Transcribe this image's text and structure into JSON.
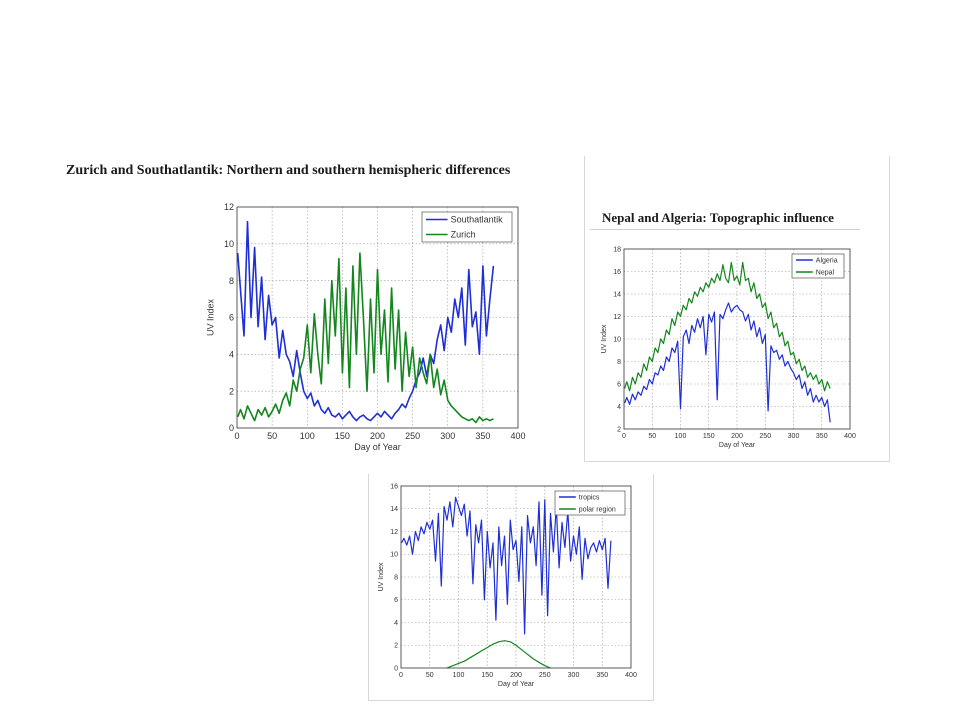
{
  "captions": {
    "zurich": "Zurich and Southatlantik: Northern and southern hemispheric differences",
    "nepal": "Nepal and Algeria: Topographic influence"
  },
  "chart_data": [
    {
      "type": "line",
      "xlabel": "Day of Year",
      "ylabel": "UV Index",
      "xlim": [
        0,
        400
      ],
      "ylim": [
        0,
        12
      ],
      "xticks": [
        0,
        50,
        100,
        150,
        200,
        250,
        300,
        350,
        400
      ],
      "yticks": [
        0,
        2,
        4,
        6,
        8,
        10,
        12
      ],
      "grid": true,
      "legend_position": "top-right",
      "series": [
        {
          "name": "Southatlantik",
          "color": "#1f2fd6",
          "x": [
            1,
            5,
            10,
            15,
            20,
            25,
            30,
            35,
            40,
            45,
            50,
            55,
            60,
            65,
            70,
            75,
            80,
            85,
            90,
            95,
            100,
            105,
            110,
            115,
            120,
            125,
            130,
            135,
            140,
            145,
            150,
            155,
            160,
            165,
            170,
            175,
            180,
            185,
            190,
            195,
            200,
            205,
            210,
            215,
            220,
            225,
            230,
            235,
            240,
            245,
            250,
            255,
            260,
            265,
            270,
            275,
            280,
            285,
            290,
            295,
            300,
            305,
            310,
            315,
            320,
            325,
            330,
            335,
            340,
            345,
            350,
            355,
            360,
            365
          ],
          "y": [
            9.5,
            7.5,
            5.0,
            11.2,
            6.0,
            9.8,
            5.5,
            8.2,
            4.8,
            7.2,
            5.6,
            6.0,
            3.8,
            5.3,
            4.0,
            3.6,
            2.8,
            4.2,
            3.0,
            2.0,
            1.6,
            1.9,
            1.2,
            1.5,
            1.0,
            0.8,
            1.1,
            0.7,
            0.6,
            0.8,
            0.5,
            0.7,
            0.9,
            0.6,
            0.4,
            0.6,
            0.7,
            0.5,
            0.4,
            0.6,
            0.8,
            0.6,
            0.9,
            0.7,
            0.5,
            0.8,
            1.0,
            1.3,
            1.1,
            1.6,
            2.0,
            2.6,
            3.0,
            3.8,
            2.8,
            4.0,
            3.5,
            4.8,
            5.6,
            4.2,
            6.0,
            5.2,
            7.0,
            6.0,
            7.6,
            4.5,
            8.6,
            5.5,
            6.3,
            4.0,
            8.8,
            5.0,
            7.0,
            8.8
          ]
        },
        {
          "name": "Zurich",
          "color": "#14861e",
          "x": [
            1,
            5,
            10,
            15,
            20,
            25,
            30,
            35,
            40,
            45,
            50,
            55,
            60,
            65,
            70,
            75,
            80,
            85,
            90,
            95,
            100,
            105,
            110,
            115,
            120,
            125,
            130,
            135,
            140,
            145,
            150,
            155,
            160,
            165,
            170,
            175,
            180,
            185,
            190,
            195,
            200,
            205,
            210,
            215,
            220,
            225,
            230,
            235,
            240,
            245,
            250,
            255,
            260,
            265,
            270,
            275,
            280,
            285,
            290,
            295,
            300,
            305,
            310,
            315,
            320,
            325,
            330,
            335,
            340,
            345,
            350,
            355,
            360,
            365
          ],
          "y": [
            0.6,
            1.0,
            0.5,
            1.2,
            0.8,
            0.4,
            1.0,
            0.7,
            1.1,
            0.6,
            0.9,
            1.3,
            0.8,
            1.5,
            1.9,
            1.2,
            2.6,
            2.0,
            3.2,
            3.8,
            5.6,
            3.0,
            6.2,
            4.0,
            2.4,
            7.0,
            3.5,
            8.0,
            5.0,
            9.2,
            3.0,
            7.6,
            2.2,
            8.8,
            4.0,
            9.5,
            6.0,
            2.0,
            7.0,
            3.0,
            8.6,
            4.0,
            6.4,
            2.5,
            7.6,
            3.2,
            6.4,
            2.0,
            5.2,
            2.8,
            4.4,
            2.2,
            3.8,
            3.0,
            2.4,
            4.0,
            2.2,
            3.2,
            1.8,
            2.6,
            1.5,
            1.2,
            1.0,
            0.8,
            0.6,
            0.5,
            0.4,
            0.5,
            0.3,
            0.6,
            0.4,
            0.5,
            0.4,
            0.5
          ]
        }
      ]
    },
    {
      "type": "line",
      "xlabel": "Day of Year",
      "ylabel": "UV Index",
      "xlim": [
        0,
        400
      ],
      "ylim": [
        2,
        18
      ],
      "xticks": [
        0,
        50,
        100,
        150,
        200,
        250,
        300,
        350,
        400
      ],
      "yticks": [
        2,
        4,
        6,
        8,
        10,
        12,
        14,
        16,
        18
      ],
      "grid": true,
      "legend_position": "top-right",
      "series": [
        {
          "name": "Algeria",
          "color": "#1f2fd6",
          "x": [
            1,
            5,
            10,
            15,
            20,
            25,
            30,
            35,
            40,
            45,
            50,
            55,
            60,
            65,
            70,
            75,
            80,
            85,
            90,
            95,
            100,
            105,
            110,
            115,
            120,
            125,
            130,
            135,
            140,
            145,
            150,
            155,
            160,
            165,
            170,
            175,
            180,
            185,
            190,
            195,
            200,
            205,
            210,
            215,
            220,
            225,
            230,
            235,
            240,
            245,
            250,
            255,
            260,
            265,
            270,
            275,
            280,
            285,
            290,
            295,
            300,
            305,
            310,
            315,
            320,
            325,
            330,
            335,
            340,
            345,
            350,
            355,
            360,
            365
          ],
          "y": [
            4.3,
            4.8,
            4.2,
            5.1,
            4.6,
            5.3,
            5.0,
            5.8,
            5.5,
            6.4,
            6.0,
            7.0,
            6.8,
            7.6,
            7.2,
            8.4,
            8.0,
            9.2,
            8.8,
            9.8,
            3.8,
            10.2,
            10.8,
            9.6,
            11.2,
            10.6,
            11.8,
            11.0,
            12.0,
            8.6,
            12.2,
            11.5,
            12.4,
            4.6,
            12.2,
            11.8,
            12.6,
            13.2,
            12.4,
            12.8,
            13.0,
            12.6,
            12.4,
            11.6,
            12.2,
            10.8,
            11.6,
            10.2,
            11.0,
            9.6,
            10.4,
            3.6,
            9.4,
            8.8,
            9.0,
            8.2,
            8.6,
            7.6,
            8.0,
            7.4,
            7.0,
            6.4,
            6.8,
            5.6,
            6.2,
            5.0,
            5.6,
            4.4,
            5.0,
            4.4,
            4.8,
            4.0,
            4.6,
            2.6
          ]
        },
        {
          "name": "Nepal",
          "color": "#14861e",
          "x": [
            1,
            5,
            10,
            15,
            20,
            25,
            30,
            35,
            40,
            45,
            50,
            55,
            60,
            65,
            70,
            75,
            80,
            85,
            90,
            95,
            100,
            105,
            110,
            115,
            120,
            125,
            130,
            135,
            140,
            145,
            150,
            155,
            160,
            165,
            170,
            175,
            180,
            185,
            190,
            195,
            200,
            205,
            210,
            215,
            220,
            225,
            230,
            235,
            240,
            245,
            250,
            255,
            260,
            265,
            270,
            275,
            280,
            285,
            290,
            295,
            300,
            305,
            310,
            315,
            320,
            325,
            330,
            335,
            340,
            345,
            350,
            355,
            360,
            365
          ],
          "y": [
            5.6,
            6.2,
            5.4,
            6.6,
            6.0,
            7.0,
            6.6,
            7.8,
            7.2,
            8.4,
            8.0,
            9.2,
            8.8,
            10.0,
            9.6,
            10.8,
            10.4,
            11.8,
            11.2,
            12.4,
            12.0,
            13.0,
            12.6,
            13.6,
            13.2,
            14.2,
            13.8,
            14.6,
            14.2,
            15.0,
            14.6,
            15.4,
            15.0,
            15.8,
            15.2,
            16.6,
            15.4,
            15.0,
            16.8,
            15.2,
            15.6,
            14.8,
            16.8,
            15.2,
            15.4,
            14.2,
            15.0,
            13.6,
            14.0,
            12.8,
            13.2,
            11.8,
            12.4,
            11.0,
            11.4,
            10.2,
            10.6,
            9.4,
            9.8,
            8.6,
            8.8,
            7.8,
            8.2,
            7.2,
            7.6,
            6.6,
            7.0,
            6.4,
            6.8,
            6.0,
            6.4,
            5.4,
            6.2,
            5.6
          ]
        }
      ]
    },
    {
      "type": "line",
      "xlabel": "Day of Year",
      "ylabel": "UV Index",
      "xlim": [
        0,
        400
      ],
      "ylim": [
        0,
        16
      ],
      "xticks": [
        0,
        50,
        100,
        150,
        200,
        250,
        300,
        350,
        400
      ],
      "yticks": [
        0,
        2,
        4,
        6,
        8,
        10,
        12,
        14,
        16
      ],
      "grid": true,
      "legend_position": "top-right",
      "series": [
        {
          "name": "tropics",
          "color": "#1f2fd6",
          "x": [
            1,
            5,
            10,
            15,
            20,
            25,
            30,
            35,
            40,
            45,
            50,
            55,
            60,
            65,
            70,
            75,
            80,
            85,
            90,
            95,
            100,
            105,
            110,
            115,
            120,
            125,
            130,
            135,
            140,
            145,
            150,
            155,
            160,
            165,
            170,
            175,
            180,
            185,
            190,
            195,
            200,
            205,
            210,
            215,
            220,
            225,
            230,
            235,
            240,
            245,
            250,
            255,
            260,
            265,
            270,
            275,
            280,
            285,
            290,
            295,
            300,
            305,
            310,
            315,
            320,
            325,
            330,
            335,
            340,
            345,
            350,
            355,
            360,
            365
          ],
          "y": [
            11.0,
            11.4,
            10.8,
            11.6,
            10.0,
            12.0,
            11.2,
            12.4,
            11.8,
            12.8,
            12.2,
            13.0,
            9.4,
            13.6,
            7.2,
            14.2,
            13.0,
            14.6,
            12.4,
            15.0,
            14.2,
            13.4,
            14.4,
            11.6,
            13.8,
            7.4,
            12.6,
            11.0,
            13.0,
            6.0,
            12.0,
            8.8,
            11.0,
            4.2,
            12.4,
            9.0,
            11.6,
            5.6,
            13.0,
            10.4,
            11.2,
            7.6,
            12.4,
            3.0,
            13.4,
            11.0,
            12.4,
            9.0,
            14.6,
            6.4,
            14.8,
            4.6,
            13.6,
            10.2,
            14.2,
            8.8,
            12.8,
            10.6,
            13.8,
            9.4,
            11.6,
            10.0,
            12.4,
            7.8,
            11.4,
            9.6,
            10.6,
            11.0,
            10.2,
            11.2,
            10.4,
            11.4,
            7.0,
            11.2
          ]
        },
        {
          "name": "polar region",
          "color": "#14861e",
          "x": [
            80,
            90,
            100,
            110,
            120,
            130,
            140,
            150,
            160,
            170,
            180,
            190,
            200,
            210,
            220,
            230,
            240,
            250,
            260
          ],
          "y": [
            0.0,
            0.2,
            0.4,
            0.6,
            0.9,
            1.2,
            1.5,
            1.8,
            2.1,
            2.3,
            2.4,
            2.3,
            2.0,
            1.6,
            1.2,
            0.8,
            0.5,
            0.2,
            0.0
          ]
        }
      ]
    }
  ]
}
